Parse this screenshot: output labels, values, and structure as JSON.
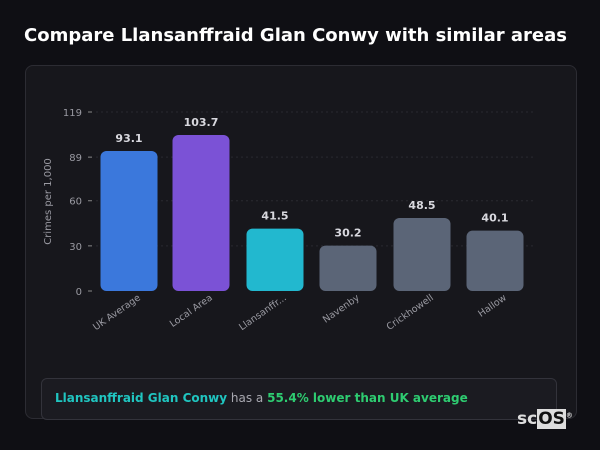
{
  "title": "Compare Llansanffraid Glan Conwy with similar areas",
  "chart_data": {
    "type": "bar",
    "ylabel": "Crimes per 1,000",
    "xlabel": "",
    "ylim": [
      0,
      119
    ],
    "yticks": [
      0,
      30,
      60,
      89,
      119
    ],
    "grid": true,
    "categories": [
      "UK Average",
      "Local Area",
      "Llansanffr...",
      "Navenby",
      "Crickhowell",
      "Hallow"
    ],
    "values": [
      93.1,
      103.7,
      41.5,
      30.2,
      48.5,
      40.1
    ],
    "value_labels": [
      "93.1",
      "103.7",
      "41.5",
      "30.2",
      "48.5",
      "40.1"
    ],
    "colors": [
      "#3b78dc",
      "#7b52d6",
      "#22b8cf",
      "#5b6577",
      "#5b6577",
      "#5b6577"
    ]
  },
  "summary": {
    "area": "Llansanffraid Glan Conwy",
    "middle": " has a ",
    "comparison": "55.4% lower than UK average"
  },
  "logo": {
    "text1": "sc",
    "text2": "OS",
    "mark": "®"
  }
}
